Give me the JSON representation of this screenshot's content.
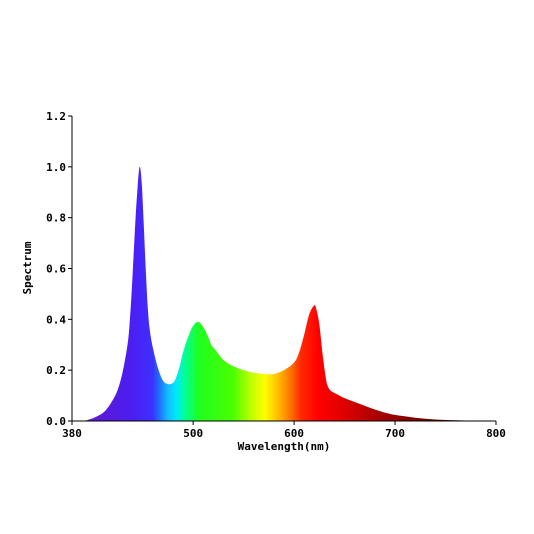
{
  "chart_data": {
    "type": "area",
    "title": "",
    "xlabel": "Wavelength(nm)",
    "ylabel": "Spectrum",
    "xlim": [
      380,
      800
    ],
    "ylim": [
      0,
      1.2
    ],
    "x_ticks": [
      380,
      500,
      600,
      700,
      800
    ],
    "x_tick_labels": [
      "380",
      "500",
      "600",
      "700",
      "800"
    ],
    "y_ticks": [
      0,
      0.2,
      0.4,
      0.6,
      0.8,
      1.0,
      1.2
    ],
    "y_tick_labels": [
      "0.0",
      "0.2",
      "0.4",
      "0.6",
      "0.8",
      "1.0",
      "1.2"
    ],
    "grid": false,
    "fill": "wavelength-spectrum-gradient",
    "series": [
      {
        "x": [
          380,
          390,
          400,
          410,
          415,
          420,
          425,
          430,
          435,
          437,
          439,
          441,
          443,
          445,
          447,
          449,
          451,
          453,
          455,
          457,
          460,
          465,
          470,
          475,
          480,
          483,
          487,
          490,
          495,
          500,
          505,
          510,
          515,
          518,
          522,
          530,
          540,
          550,
          560,
          570,
          580,
          590,
          600,
          605,
          610,
          615,
          620,
          622,
          625,
          628,
          631,
          633,
          636,
          640,
          645,
          650,
          660,
          670,
          680,
          690,
          700,
          720,
          740,
          760,
          780,
          800
        ],
        "y": [
          0,
          0,
          0.01,
          0.03,
          0.05,
          0.08,
          0.12,
          0.19,
          0.3,
          0.38,
          0.5,
          0.65,
          0.8,
          0.92,
          1.0,
          0.94,
          0.78,
          0.6,
          0.45,
          0.36,
          0.29,
          0.21,
          0.16,
          0.145,
          0.15,
          0.17,
          0.22,
          0.27,
          0.33,
          0.375,
          0.39,
          0.37,
          0.33,
          0.3,
          0.28,
          0.24,
          0.215,
          0.2,
          0.19,
          0.185,
          0.185,
          0.2,
          0.23,
          0.27,
          0.34,
          0.42,
          0.455,
          0.44,
          0.38,
          0.27,
          0.18,
          0.14,
          0.12,
          0.11,
          0.1,
          0.09,
          0.075,
          0.06,
          0.045,
          0.033,
          0.024,
          0.013,
          0.006,
          0.003,
          0.001,
          0
        ]
      }
    ]
  }
}
